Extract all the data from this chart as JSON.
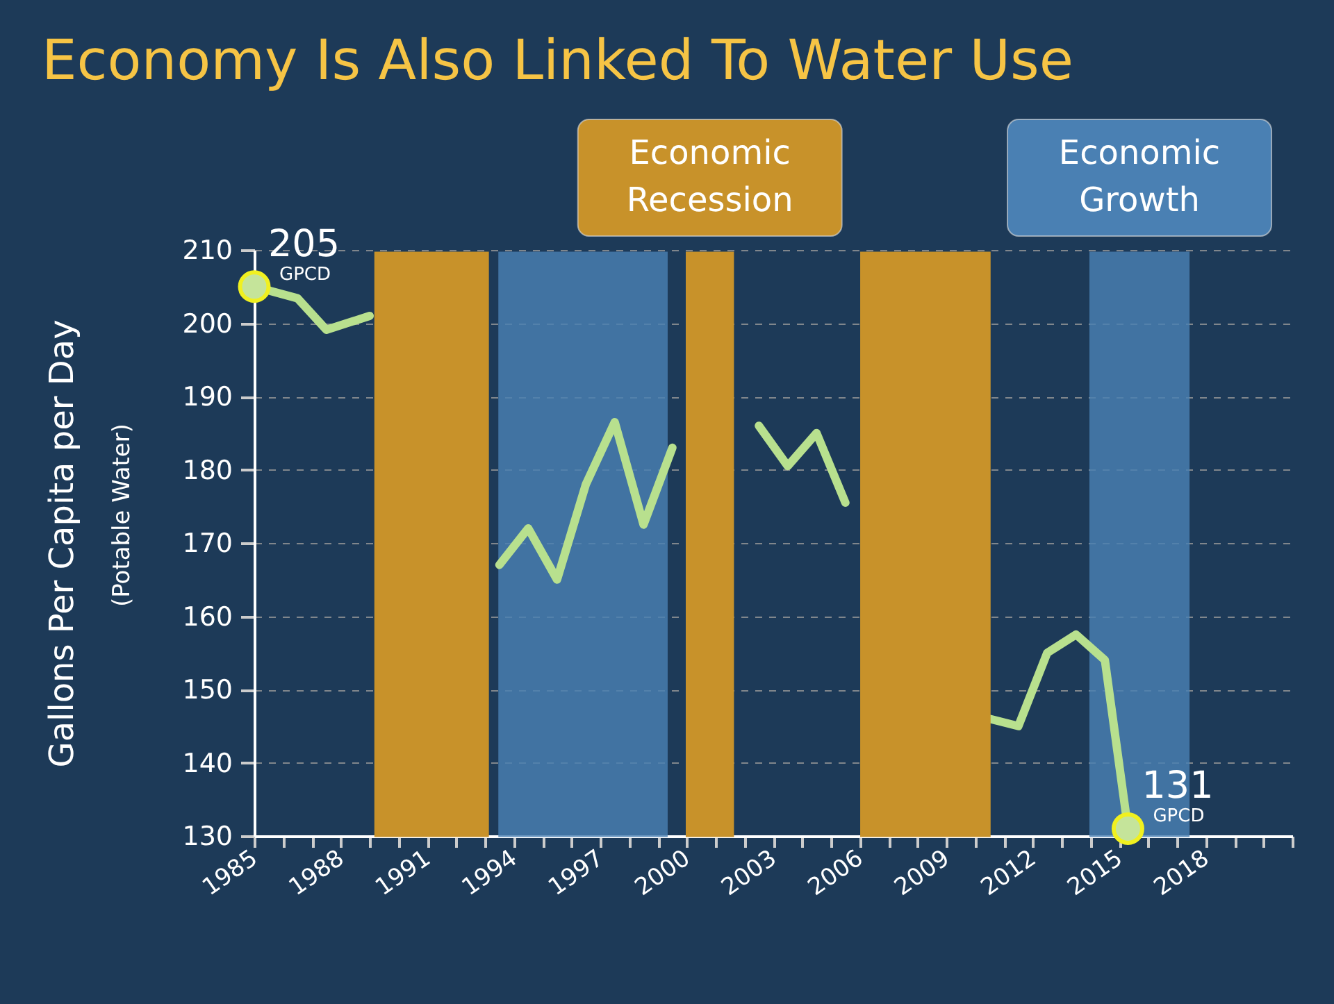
{
  "chart_data": {
    "type": "line",
    "title": "Economy Is Also Linked To Water Use",
    "ylabel": "Gallons Per Capita per Day",
    "xlim": [
      1985,
      2021
    ],
    "xticks": [
      1985,
      {
        "value": 1986,
        "label": null
      },
      {
        "value": 1987,
        "label": null
      },
      1988,
      {
        "value": 1989,
        "label": null
      },
      {
        "value": 1990,
        "label": null
      },
      1991,
      {
        "value": 1992,
        "label": null
      },
      {
        "value": 1993,
        "label": null
      },
      1994,
      {
        "value": 1995,
        "label": null
      },
      {
        "value": 1996,
        "label": null
      },
      1997,
      {
        "value": 1998,
        "label": null
      },
      {
        "value": 1999,
        "label": null
      },
      2000,
      {
        "value": 2001,
        "label": null
      },
      {
        "value": 2002,
        "label": null
      },
      2003,
      {
        "value": 2004,
        "label": null
      },
      {
        "value": 2005,
        "label": null
      },
      2006,
      {
        "value": 2007,
        "label": null
      },
      {
        "value": 2008,
        "label": null
      },
      2009,
      {
        "value": 2010,
        "label": null
      },
      {
        "value": 2011,
        "label": null
      },
      2012,
      {
        "value": 2013,
        "label": null
      },
      {
        "value": 2014,
        "label": null
      },
      2015,
      {
        "value": 2016,
        "label": null
      },
      {
        "value": 2017,
        "label": null
      },
      2018,
      {
        "value": 2019,
        "label": null
      },
      {
        "value": 2020,
        "label": null
      },
      {
        "value": 2021,
        "label": null
      }
    ],
    "ylim": [
      130,
      210
    ],
    "yticks": [
      130,
      140,
      150,
      160,
      170,
      180,
      190,
      200,
      210
    ],
    "grid": "y",
    "line_style": "solid",
    "series": [
      {
        "color": "#b8e08e",
        "x": [
          1985,
          1986.5,
          1987.5,
          1989,
          1991,
          1993.5,
          1994.5,
          1995.5,
          1996.5,
          1997.5,
          1998.5,
          1999.5,
          2000.5,
          2002.5,
          2003.5,
          2004.5,
          2005.5,
          2008,
          2010.5,
          2011.5,
          2012.5,
          2013.5,
          2014.5,
          2015.3
        ],
        "values": [
          205,
          203.4,
          199.1,
          201,
          null,
          167,
          172,
          165,
          178,
          186.5,
          172.5,
          183,
          null,
          186,
          180.5,
          185,
          175.5,
          null,
          146,
          145,
          155,
          157.5,
          154,
          131
        ]
      },
      {
        "type": "scatter",
        "marker": "circle",
        "color": "#c5e49a",
        "x": [
          1985,
          2015.3
        ],
        "values": [
          205,
          131
        ]
      }
    ],
    "bands": [
      {
        "axis": "x",
        "from": 1989.2,
        "to": 1993.1,
        "label": null,
        "color": "#c8922a"
      },
      {
        "axis": "x",
        "from": 1993.5,
        "to": 1999.3,
        "label": null,
        "color": "#4a80b3"
      },
      {
        "axis": "x",
        "from": 2000,
        "to": 2001.6,
        "label": "Economic Recession",
        "color": "#c8922a"
      },
      {
        "axis": "x",
        "from": 2006.05,
        "to": 2010.5,
        "label": null,
        "color": "#c8922a"
      },
      {
        "axis": "x",
        "from": 2014,
        "to": 2017.4,
        "label": "Economic Growth",
        "color": "#4a80b3"
      }
    ],
    "annotations": [
      {
        "text": "205 GPCD",
        "x": 1985,
        "y": 205
      },
      {
        "text": "131 GPCD",
        "x": 2015.3,
        "y": 131
      },
      "(Potable Water)"
    ]
  }
}
